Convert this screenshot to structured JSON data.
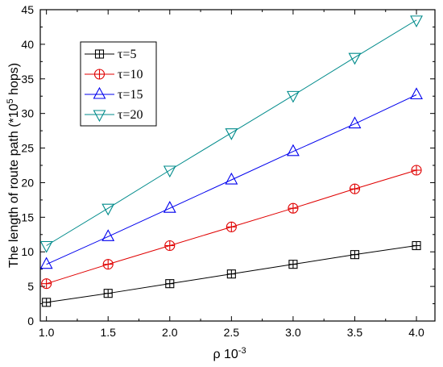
{
  "chart_data": {
    "type": "line",
    "x": [
      1.0,
      1.5,
      2.0,
      2.5,
      3.0,
      3.5,
      4.0
    ],
    "x_tick_labels": [
      "1.0",
      "1.5",
      "2.0",
      "2.5",
      "3.0",
      "3.5",
      "4.0"
    ],
    "y_ticks": [
      0,
      5,
      10,
      15,
      20,
      25,
      30,
      35,
      40,
      45
    ],
    "xlim": [
      0.95,
      4.15
    ],
    "ylim": [
      0,
      45
    ],
    "xlabel": "ρ  10",
    "xlabel_exp": "-3",
    "ylabel": "The length of route  path  (*10",
    "ylabel_exp": "5",
    "ylabel_suffix": " hops)",
    "grid": false,
    "legend_position": "upper-left",
    "series": [
      {
        "name": "τ=5",
        "marker": "square-plus",
        "color": "#000000",
        "values": [
          2.7,
          4.0,
          5.4,
          6.8,
          8.2,
          9.6,
          10.9
        ]
      },
      {
        "name": "τ=10",
        "marker": "circle-plus",
        "color": "#e00000",
        "values": [
          5.4,
          8.2,
          10.9,
          13.6,
          16.3,
          19.1,
          21.8
        ]
      },
      {
        "name": "τ=15",
        "marker": "triangle-up",
        "color": "#0000ee",
        "values": [
          8.2,
          12.2,
          16.3,
          20.4,
          24.5,
          28.5,
          32.7
        ]
      },
      {
        "name": "τ=20",
        "marker": "triangle-down",
        "color": "#008b8b",
        "values": [
          10.9,
          16.3,
          21.8,
          27.2,
          32.6,
          38.1,
          43.5
        ]
      }
    ]
  }
}
